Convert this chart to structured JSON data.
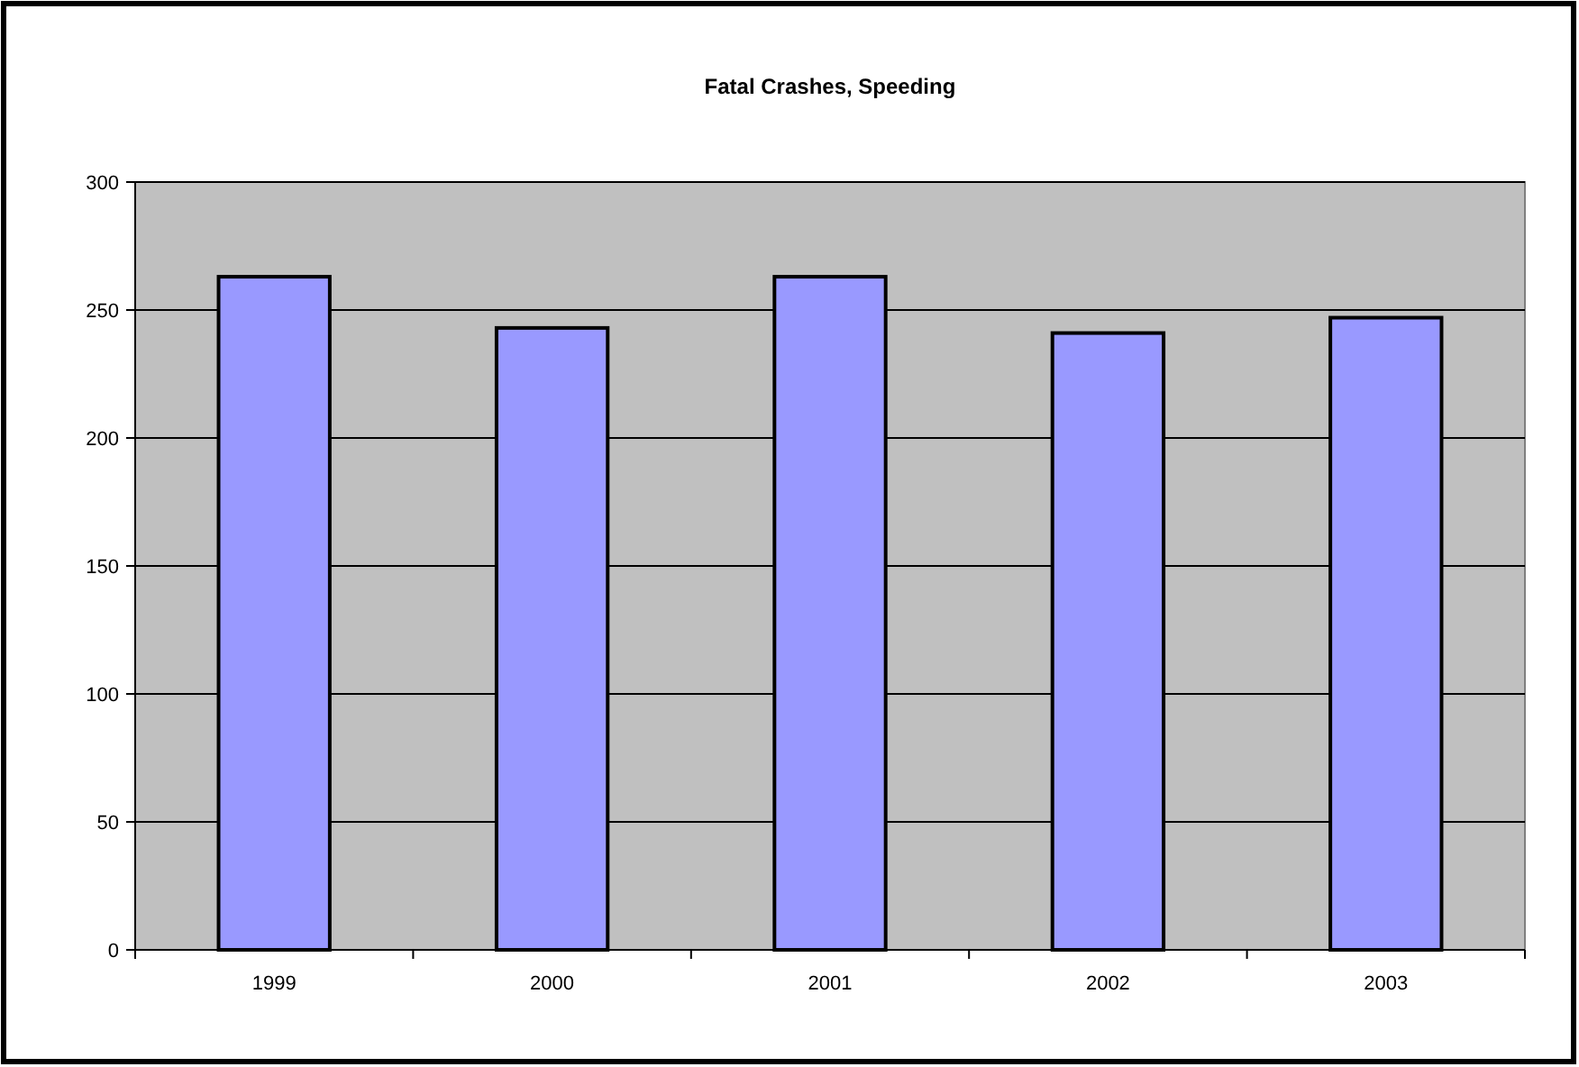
{
  "chart_data": {
    "type": "bar",
    "title": "Fatal Crashes, Speeding",
    "categories": [
      "1999",
      "2000",
      "2001",
      "2002",
      "2003"
    ],
    "values": [
      263,
      243,
      263,
      241,
      247
    ],
    "color": "#9999ff",
    "ylim": [
      0,
      300
    ],
    "yticks": [
      0,
      50,
      100,
      150,
      200,
      250,
      300
    ],
    "grid": "y"
  }
}
